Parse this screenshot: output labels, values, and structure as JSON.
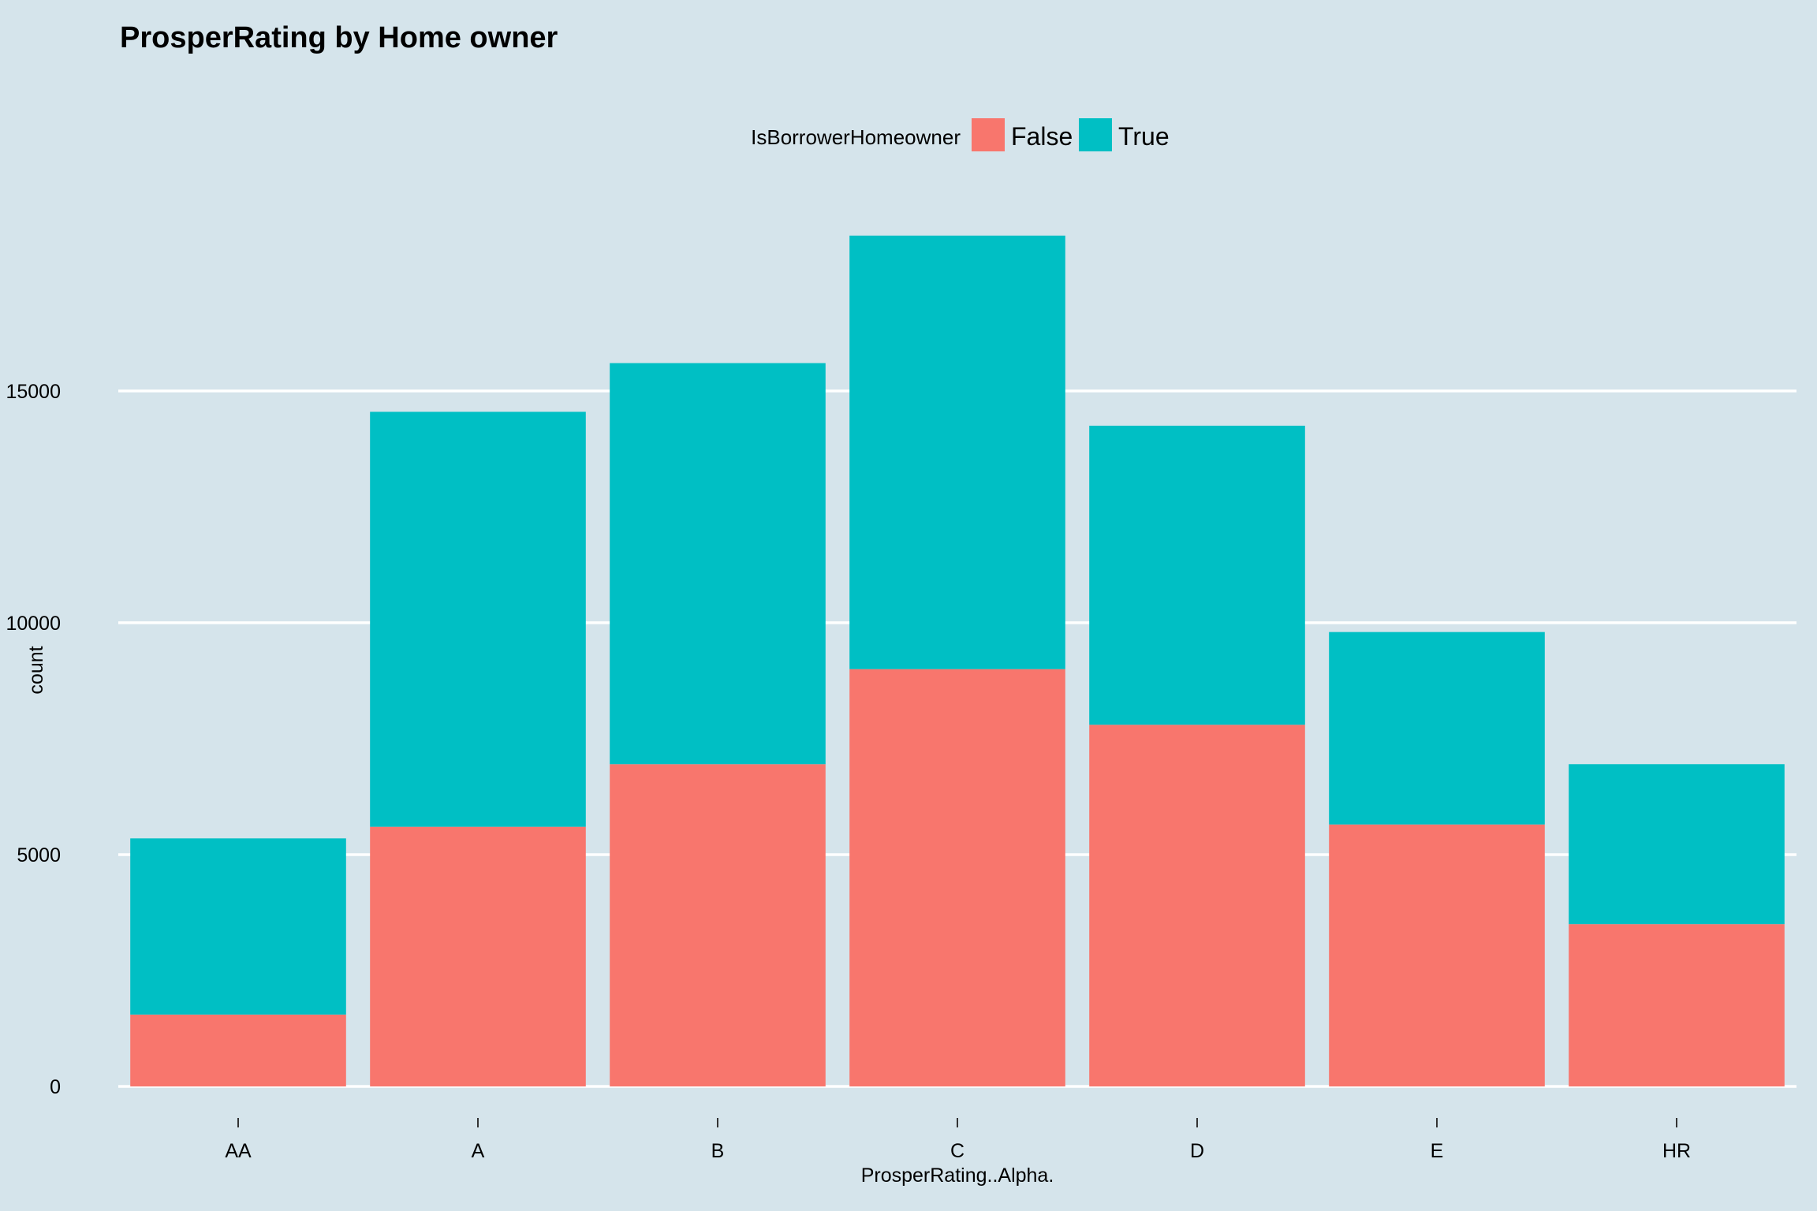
{
  "chart_data": {
    "type": "bar",
    "stacked": true,
    "title": "ProsperRating by Home owner",
    "xlabel": "ProsperRating..Alpha.",
    "ylabel": "count",
    "categories": [
      "AA",
      "A",
      "B",
      "C",
      "D",
      "E",
      "HR"
    ],
    "yticks": [
      0,
      5000,
      10000,
      15000
    ],
    "ylim": [
      0,
      18500
    ],
    "grid": "horizontal",
    "legend": {
      "title": "IsBorrowerHomeowner",
      "placement": "top"
    },
    "series": [
      {
        "name": "False",
        "color": "#f8766d",
        "values": [
          1550,
          5600,
          6950,
          9000,
          7800,
          5650,
          3500
        ]
      },
      {
        "name": "True",
        "color": "#00bfc4",
        "values": [
          3800,
          8950,
          8650,
          9350,
          6450,
          4150,
          3450
        ]
      }
    ]
  }
}
